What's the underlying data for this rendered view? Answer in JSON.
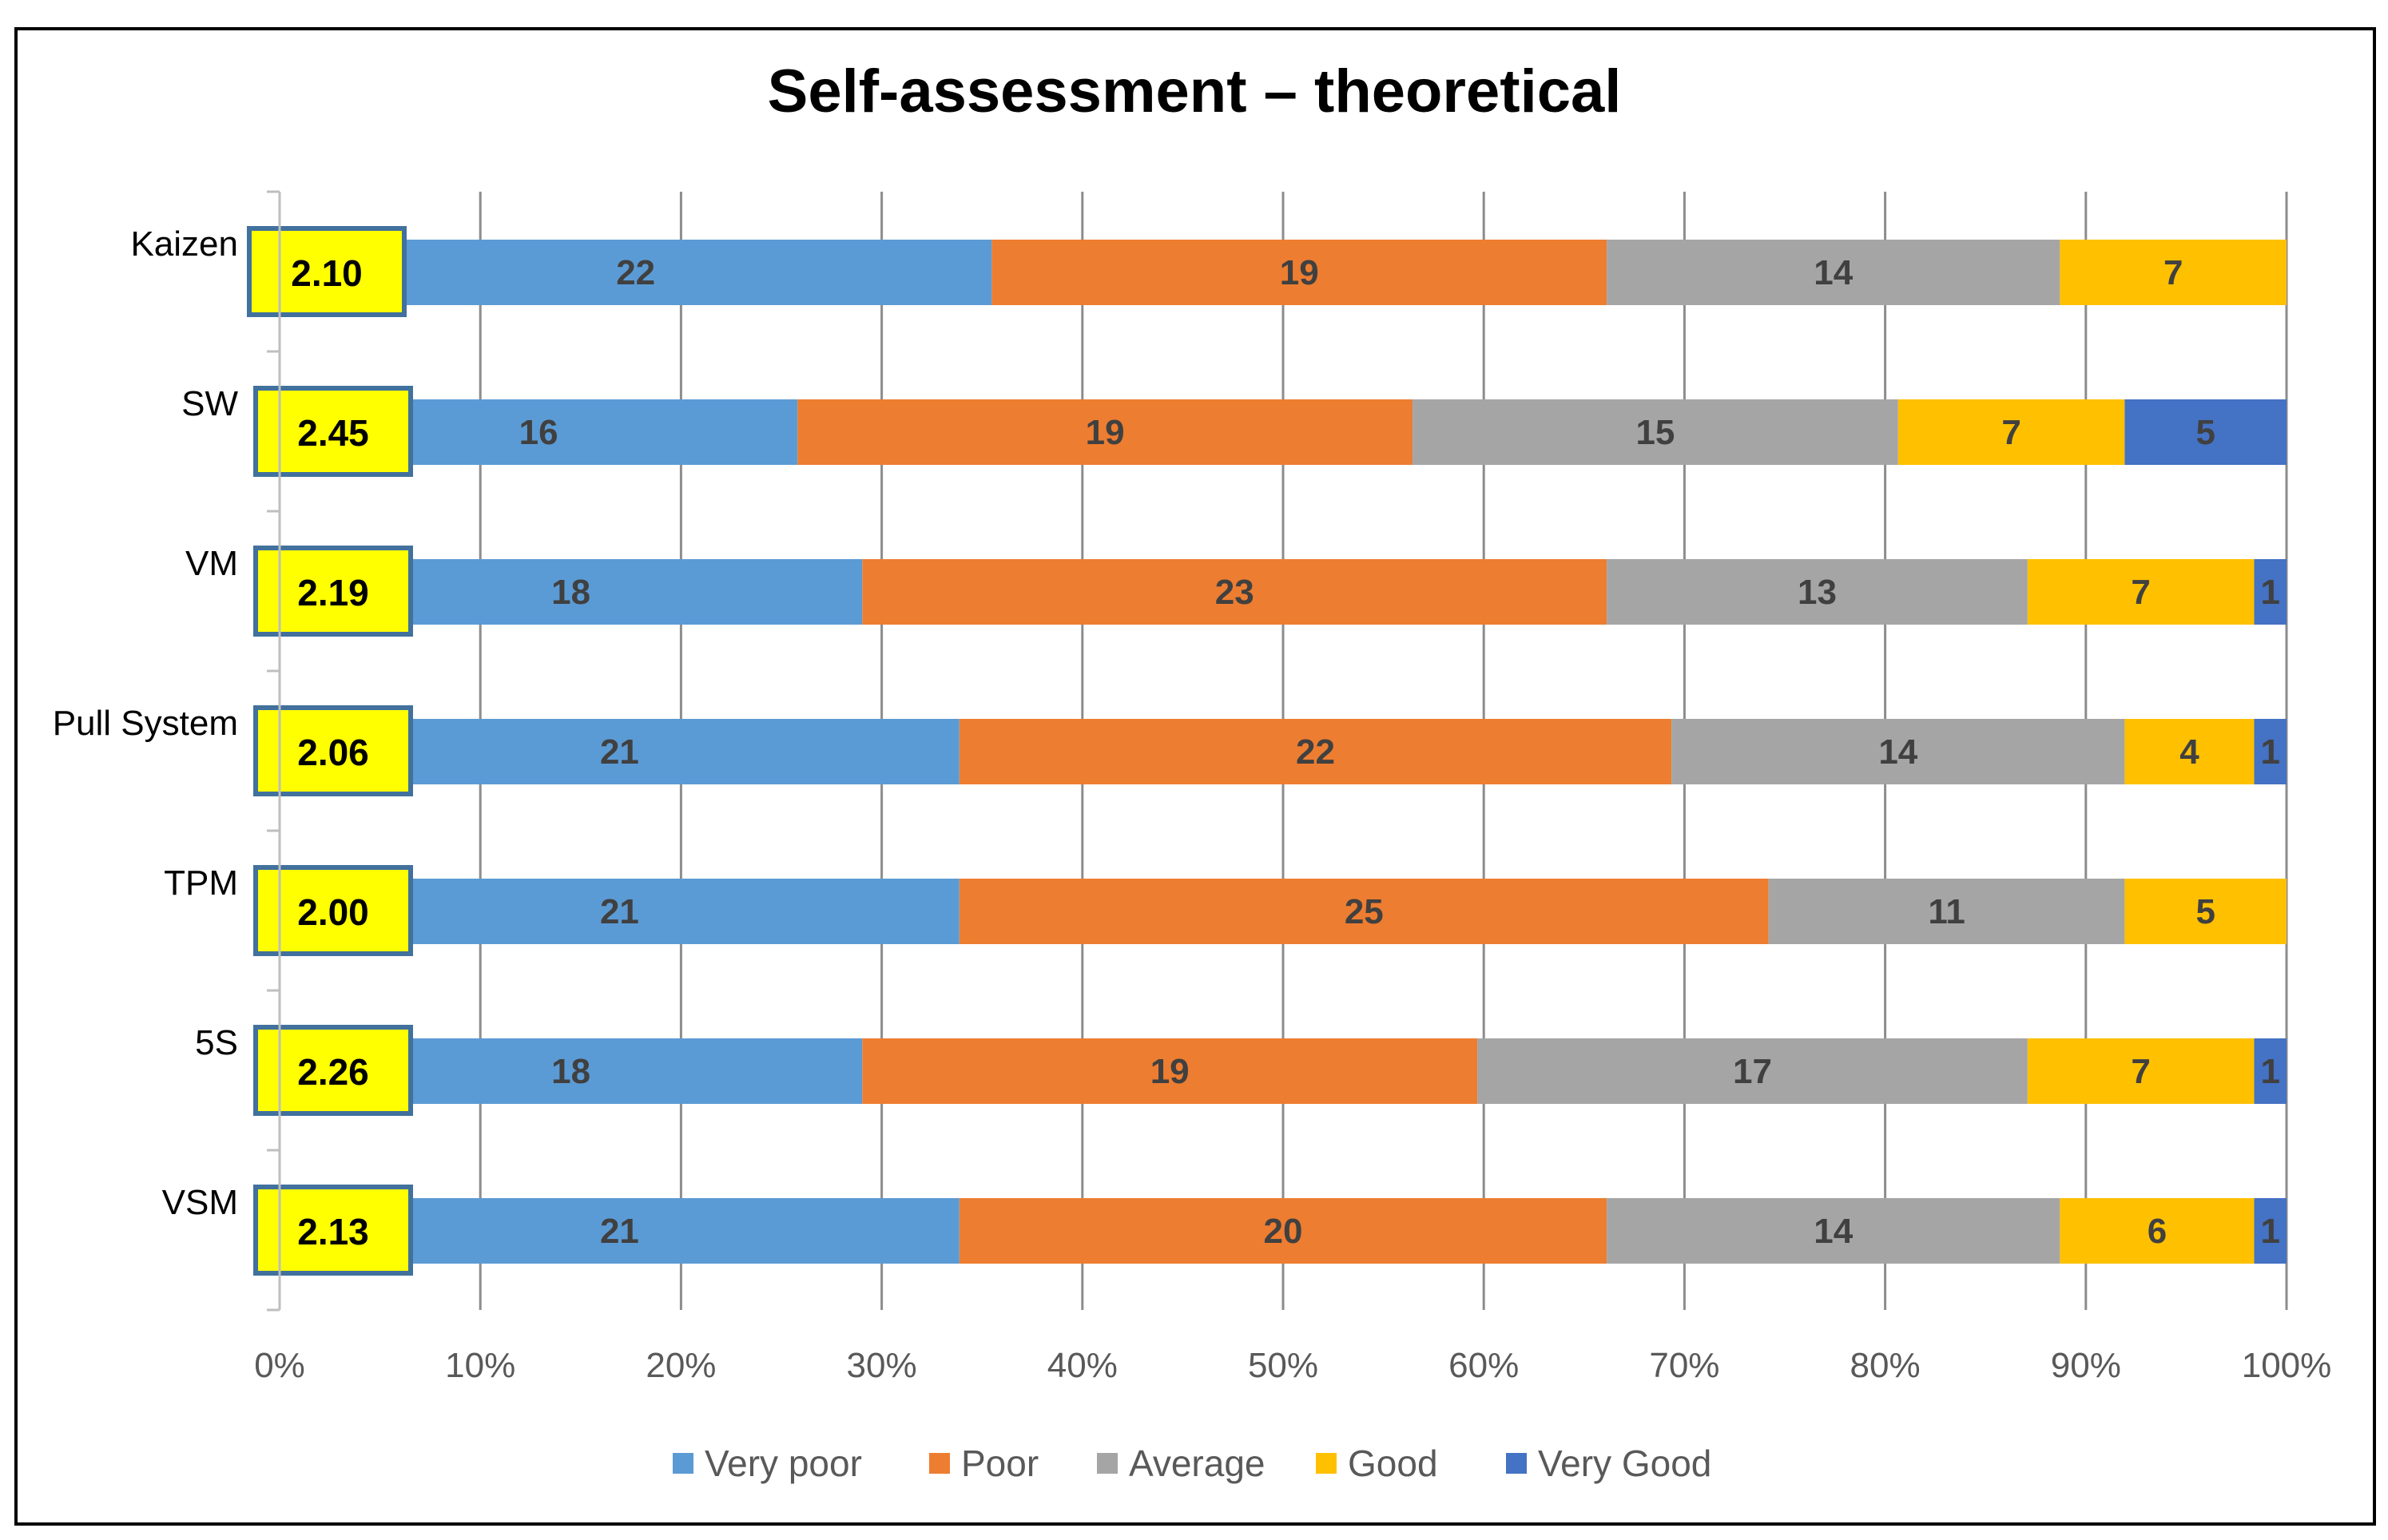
{
  "chart_data": {
    "type": "bar",
    "orientation": "horizontal",
    "stacked": "percent",
    "title": "Self-assessment – theoretical",
    "categories": [
      "Kaizen",
      "SW",
      "VM",
      "Pull System",
      "TPM",
      "5S",
      "VSM"
    ],
    "series": [
      {
        "name": "Very poor",
        "color": "#5B9BD5",
        "values": [
          22,
          16,
          18,
          21,
          21,
          18,
          21
        ]
      },
      {
        "name": "Poor",
        "color": "#ED7D31",
        "values": [
          19,
          19,
          23,
          22,
          25,
          19,
          20
        ]
      },
      {
        "name": "Average",
        "color": "#A5A5A5",
        "values": [
          14,
          15,
          13,
          14,
          11,
          17,
          14
        ]
      },
      {
        "name": "Good",
        "color": "#FFC000",
        "values": [
          7,
          7,
          7,
          4,
          5,
          7,
          6
        ]
      },
      {
        "name": "Very Good",
        "color": "#4472C4",
        "values": [
          0,
          5,
          1,
          1,
          0,
          1,
          1
        ]
      }
    ],
    "scores": [
      "2.10",
      "2.45",
      "2.19",
      "2.06",
      "2.00",
      "2.26",
      "2.13"
    ],
    "x_ticks": [
      "0%",
      "10%",
      "20%",
      "30%",
      "40%",
      "50%",
      "60%",
      "70%",
      "80%",
      "90%",
      "100%"
    ],
    "xlim": [
      0,
      100
    ],
    "grid": true,
    "legend_position": "bottom",
    "score_box_color": "#FFFF00",
    "score_border_color": "#41719C"
  }
}
